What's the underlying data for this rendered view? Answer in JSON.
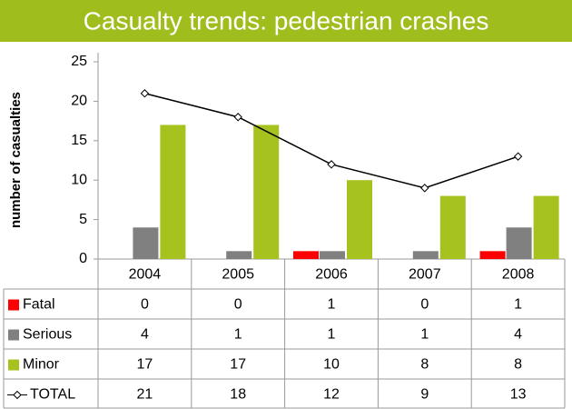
{
  "chart_data": {
    "type": "bar",
    "title": "Casualty trends: pedestrian crashes",
    "y_label": "number of casualties",
    "categories": [
      "2004",
      "2005",
      "2006",
      "2007",
      "2008"
    ],
    "series": [
      {
        "name": "Fatal",
        "color": "#ff0000",
        "values": [
          0,
          0,
          1,
          0,
          1
        ]
      },
      {
        "name": "Serious",
        "color": "#808080",
        "values": [
          4,
          1,
          1,
          1,
          4
        ]
      },
      {
        "name": "Minor",
        "color": "#a6c21e",
        "values": [
          17,
          17,
          10,
          8,
          8
        ]
      },
      {
        "name": "TOTAL",
        "color": "#000000",
        "type": "line",
        "values": [
          21,
          18,
          12,
          9,
          13
        ]
      }
    ],
    "ylim": [
      0,
      25
    ],
    "yticks": [
      0,
      5,
      10,
      15,
      20,
      25
    ]
  }
}
